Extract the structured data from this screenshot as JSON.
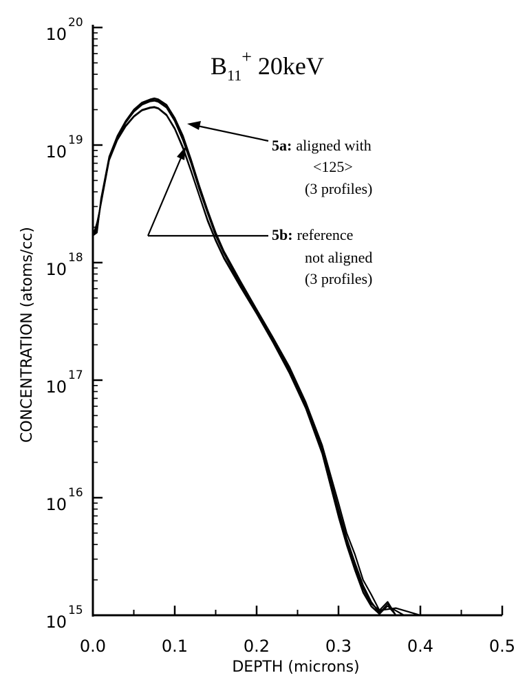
{
  "chart_data": {
    "type": "line",
    "title": {
      "base": "B",
      "sub": "11",
      "sup": "+",
      "rest": " 20keV"
    },
    "xlabel": "DEPTH (microns)",
    "ylabel": "CONCENTRATION (atoms/cc)",
    "xlim": [
      0.0,
      0.5
    ],
    "ylim": [
      1000000000000000.0,
      1e+20
    ],
    "yscale": "log",
    "grid": false,
    "x_tick_labels": [
      "0.0",
      "0.1",
      "0.2",
      "0.3",
      "0.4",
      "0.5"
    ],
    "y_tick_labels": [
      {
        "base": "10",
        "exp": "15"
      },
      {
        "base": "10",
        "exp": "16"
      },
      {
        "base": "10",
        "exp": "17"
      },
      {
        "base": "10",
        "exp": "18"
      },
      {
        "base": "10",
        "exp": "19"
      },
      {
        "base": "10",
        "exp": "20"
      }
    ],
    "annotations": [
      {
        "id": "5a",
        "bold": "5a:",
        "lines": [
          "aligned with",
          "<125>",
          "(3 profiles)"
        ]
      },
      {
        "id": "5b",
        "bold": "5b:",
        "lines": [
          "reference",
          "not aligned",
          "(3 profiles)"
        ]
      }
    ],
    "series": [
      {
        "group": "5a",
        "x": [
          0.0,
          0.005,
          0.01,
          0.02,
          0.03,
          0.04,
          0.05,
          0.06,
          0.07,
          0.075,
          0.08,
          0.09,
          0.1,
          0.11,
          0.12,
          0.13,
          0.14,
          0.15,
          0.16,
          0.18,
          0.2,
          0.22,
          0.24,
          0.26,
          0.28,
          0.3,
          0.31,
          0.32,
          0.33,
          0.34,
          0.35,
          0.37,
          0.4
        ],
        "y": [
          1.7e+18,
          1.8e+18,
          3.5e+18,
          8e+18,
          1.2e+19,
          1.6e+19,
          2e+19,
          2.3e+19,
          2.45e+19,
          2.5e+19,
          2.45e+19,
          2.2e+19,
          1.7e+19,
          1.2e+19,
          7.5e+18,
          4.5e+18,
          2.8e+18,
          1.8e+18,
          1.25e+18,
          7e+17,
          4e+17,
          2.3e+17,
          1.3e+17,
          6.5e+16,
          2.8e+16,
          9000000000000000.0,
          5000000000000000.0,
          3300000000000000.0,
          2000000000000000.0,
          1500000000000000.0,
          1100000000000000.0,
          1150000000000000.0,
          1000000000000000.0
        ]
      },
      {
        "group": "5a",
        "x": [
          0.0,
          0.005,
          0.01,
          0.02,
          0.03,
          0.04,
          0.05,
          0.06,
          0.07,
          0.075,
          0.08,
          0.09,
          0.1,
          0.11,
          0.12,
          0.13,
          0.14,
          0.15,
          0.16,
          0.18,
          0.2,
          0.22,
          0.24,
          0.26,
          0.28,
          0.3,
          0.31,
          0.32,
          0.33,
          0.34,
          0.35,
          0.36,
          0.38
        ],
        "y": [
          1.75e+18,
          1.9e+18,
          3.3e+18,
          7.8e+18,
          1.18e+19,
          1.58e+19,
          1.95e+19,
          2.25e+19,
          2.4e+19,
          2.42e+19,
          2.38e+19,
          2.12e+19,
          1.65e+19,
          1.15e+19,
          7.2e+18,
          4.3e+18,
          2.7e+18,
          1.75e+18,
          1.22e+18,
          6.8e+17,
          3.9e+17,
          2.2e+17,
          1.25e+17,
          6.2e+16,
          2.6e+16,
          8000000000000000.0,
          4500000000000000.0,
          2800000000000000.0,
          1800000000000000.0,
          1300000000000000.0,
          1050000000000000.0,
          1200000000000000.0,
          1000000000000000.0
        ]
      },
      {
        "group": "5a",
        "x": [
          0.0,
          0.005,
          0.01,
          0.02,
          0.03,
          0.04,
          0.05,
          0.06,
          0.07,
          0.075,
          0.08,
          0.09,
          0.1,
          0.11,
          0.12,
          0.13,
          0.14,
          0.15,
          0.16,
          0.18,
          0.2,
          0.22,
          0.24,
          0.26,
          0.28,
          0.3,
          0.31,
          0.32,
          0.33,
          0.34,
          0.35,
          0.36,
          0.37
        ],
        "y": [
          1.7e+18,
          2.1e+18,
          3.2e+18,
          7.6e+18,
          1.15e+19,
          1.55e+19,
          1.92e+19,
          2.2e+19,
          2.35e+19,
          2.38e+19,
          2.33e+19,
          2.08e+19,
          1.6e+19,
          1.1e+19,
          7e+18,
          4.2e+18,
          2.65e+18,
          1.7e+18,
          1.2e+18,
          6.6e+17,
          3.8e+17,
          2.15e+17,
          1.2e+17,
          6e+16,
          2.5e+16,
          7500000000000000.0,
          4200000000000000.0,
          2600000000000000.0,
          1700000000000000.0,
          1250000000000000.0,
          1100000000000000.0,
          1300000000000000.0,
          1000000000000000.0
        ]
      },
      {
        "group": "5b",
        "x": [
          0.0,
          0.005,
          0.01,
          0.02,
          0.03,
          0.04,
          0.05,
          0.06,
          0.07,
          0.075,
          0.08,
          0.09,
          0.1,
          0.11,
          0.12,
          0.13,
          0.14,
          0.15,
          0.16,
          0.18,
          0.2,
          0.22,
          0.24,
          0.26,
          0.28,
          0.3,
          0.31,
          0.32,
          0.33,
          0.34,
          0.35,
          0.36,
          0.37
        ],
        "y": [
          1.7e+18,
          2e+18,
          3.3e+18,
          7.5e+18,
          1.12e+19,
          1.45e+19,
          1.75e+19,
          1.98e+19,
          2.08e+19,
          2.1e+19,
          2.05e+19,
          1.8e+19,
          1.38e+19,
          9.5e+18,
          6e+18,
          3.7e+18,
          2.3e+18,
          1.55e+18,
          1.1e+18,
          6.3e+17,
          3.7e+17,
          2.1e+17,
          1.15e+17,
          5.8e+16,
          2.4e+16,
          7000000000000000.0,
          4000000000000000.0,
          2500000000000000.0,
          1600000000000000.0,
          1200000000000000.0,
          1050000000000000.0,
          1250000000000000.0,
          1000000000000000.0
        ]
      },
      {
        "group": "5b",
        "x": [
          0.0,
          0.005,
          0.01,
          0.02,
          0.03,
          0.04,
          0.05,
          0.06,
          0.07,
          0.075,
          0.08,
          0.09,
          0.1,
          0.11,
          0.12,
          0.13,
          0.14,
          0.15,
          0.16,
          0.18,
          0.2,
          0.22,
          0.24,
          0.26,
          0.28,
          0.3,
          0.31,
          0.32,
          0.33,
          0.34,
          0.35,
          0.36,
          0.37
        ],
        "y": [
          1.72e+18,
          1.85e+18,
          3.4e+18,
          7.7e+18,
          1.14e+19,
          1.47e+19,
          1.77e+19,
          2e+19,
          2.1e+19,
          2.12e+19,
          2.07e+19,
          1.82e+19,
          1.4e+19,
          9.7e+18,
          6.1e+18,
          3.75e+18,
          2.35e+18,
          1.57e+18,
          1.12e+18,
          6.4e+17,
          3.75e+17,
          2.12e+17,
          1.18e+17,
          6e+16,
          2.45e+16,
          7200000000000000.0,
          4100000000000000.0,
          2600000000000000.0,
          1700000000000000.0,
          1250000000000000.0,
          1100000000000000.0,
          1300000000000000.0,
          1000000000000000.0
        ]
      },
      {
        "group": "5b",
        "x": [
          0.0,
          0.005,
          0.01,
          0.02,
          0.03,
          0.04,
          0.05,
          0.06,
          0.07,
          0.075,
          0.08,
          0.09,
          0.1,
          0.11,
          0.12,
          0.13,
          0.14,
          0.15,
          0.16,
          0.18,
          0.2,
          0.22,
          0.24,
          0.26,
          0.28,
          0.3,
          0.31,
          0.32,
          0.33,
          0.34,
          0.35,
          0.36,
          0.37
        ],
        "y": [
          1.68e+18,
          2.2e+18,
          3.2e+18,
          7.4e+18,
          1.1e+19,
          1.43e+19,
          1.73e+19,
          1.96e+19,
          2.06e+19,
          2.08e+19,
          2.03e+19,
          1.78e+19,
          1.36e+19,
          9.3e+18,
          5.9e+18,
          3.65e+18,
          2.25e+18,
          1.52e+18,
          1.08e+18,
          6.2e+17,
          3.65e+17,
          2.08e+17,
          1.14e+17,
          5.7e+16,
          2.35e+16,
          6800000000000000.0,
          3900000000000000.0,
          2400000000000000.0,
          1550000000000000.0,
          1180000000000000.0,
          1020000000000000.0,
          1200000000000000.0,
          1000000000000000.0
        ]
      }
    ]
  }
}
